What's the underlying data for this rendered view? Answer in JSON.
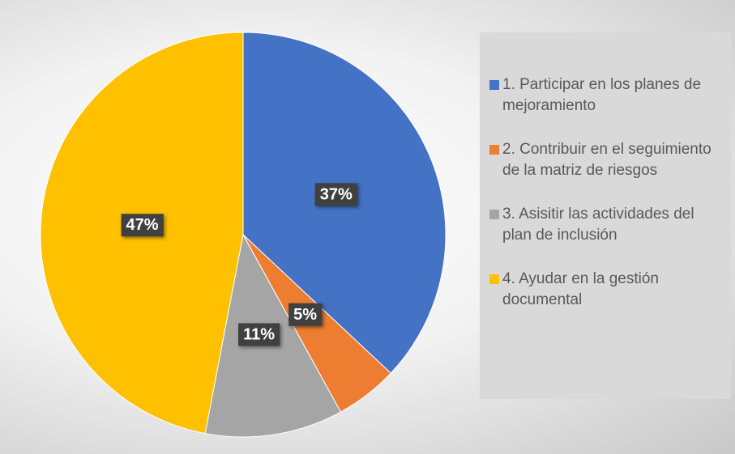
{
  "chart_data": {
    "type": "pie",
    "categories": [
      "1. Participar en los planes de mejoramiento",
      "2. Contribuir en el seguimiento de la matriz de riesgos",
      "3. Asisitir las actividades del plan de inclusión",
      "4. Ayudar en la gestión documental"
    ],
    "values": [
      37,
      5,
      11,
      47
    ],
    "value_labels": [
      "37%",
      "5%",
      "11%",
      "47%"
    ],
    "colors": [
      "#4472c4",
      "#ed7d31",
      "#a5a5a5",
      "#ffc000"
    ],
    "legend": "right"
  }
}
